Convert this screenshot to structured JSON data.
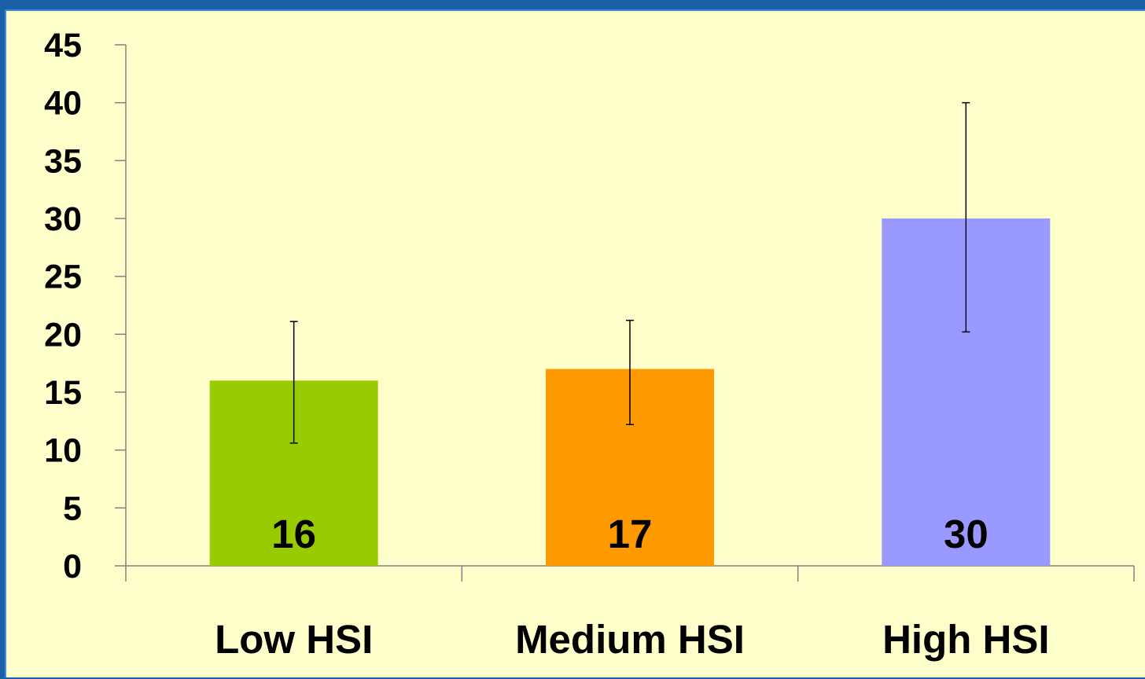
{
  "chart_data": {
    "type": "bar",
    "title": "",
    "xlabel": "",
    "ylabel": "",
    "categories": [
      "Low HSI",
      "Medium HSI",
      "High HSI"
    ],
    "values": [
      16,
      17,
      30
    ],
    "data_labels": [
      "16",
      "17",
      "30"
    ],
    "error_bars": [
      {
        "low": 10.6,
        "high": 21.1
      },
      {
        "low": 12.2,
        "high": 21.2
      },
      {
        "low": 20.2,
        "high": 40.0
      }
    ],
    "colors": [
      "#99cc00",
      "#ff9900",
      "#9999ff"
    ],
    "ylim": [
      0,
      45
    ],
    "yticks": [
      0,
      5,
      10,
      15,
      20,
      25,
      30,
      35,
      40,
      45
    ],
    "grid": false,
    "legend": "none"
  },
  "theme": {
    "background": "#ffffcc",
    "frame": "#1a5fa8"
  }
}
